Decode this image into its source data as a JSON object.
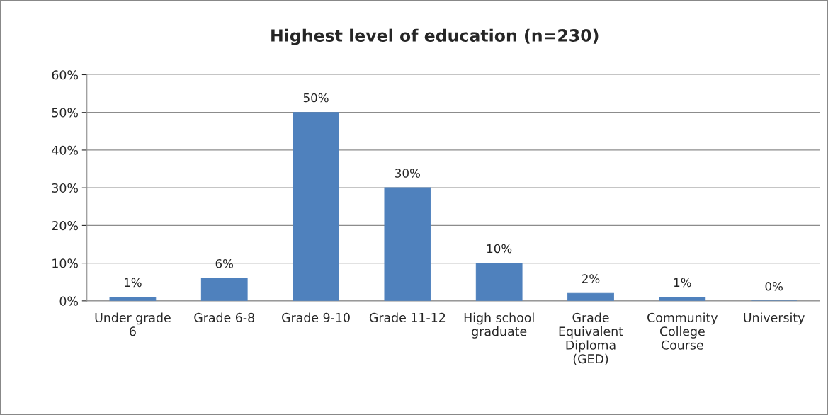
{
  "chart_data": {
    "type": "bar",
    "title": "Highest level of education (n=230)",
    "categories": [
      "Under grade 6",
      "Grade 6-8",
      "Grade 9-10",
      "Grade 11-12",
      "High school graduate",
      "Grade Equivalent Diploma (GED)",
      "Community College Course",
      "University"
    ],
    "values": [
      1,
      6,
      50,
      30,
      10,
      2,
      1,
      0
    ],
    "value_labels": [
      "1%",
      "6%",
      "50%",
      "30%",
      "10%",
      "2%",
      "1%",
      "0%"
    ],
    "color": "#4f81bd",
    "ylim": [
      0,
      60
    ],
    "yticks": [
      {
        "value": 0,
        "label": "0%"
      },
      {
        "value": 10,
        "label": "10%"
      },
      {
        "value": 20,
        "label": "20%"
      },
      {
        "value": 30,
        "label": "30%"
      },
      {
        "value": 40,
        "label": "40%"
      },
      {
        "value": 50,
        "label": "50%"
      },
      {
        "value": 60,
        "label": "60%"
      }
    ],
    "grid": "y",
    "legend": false
  }
}
